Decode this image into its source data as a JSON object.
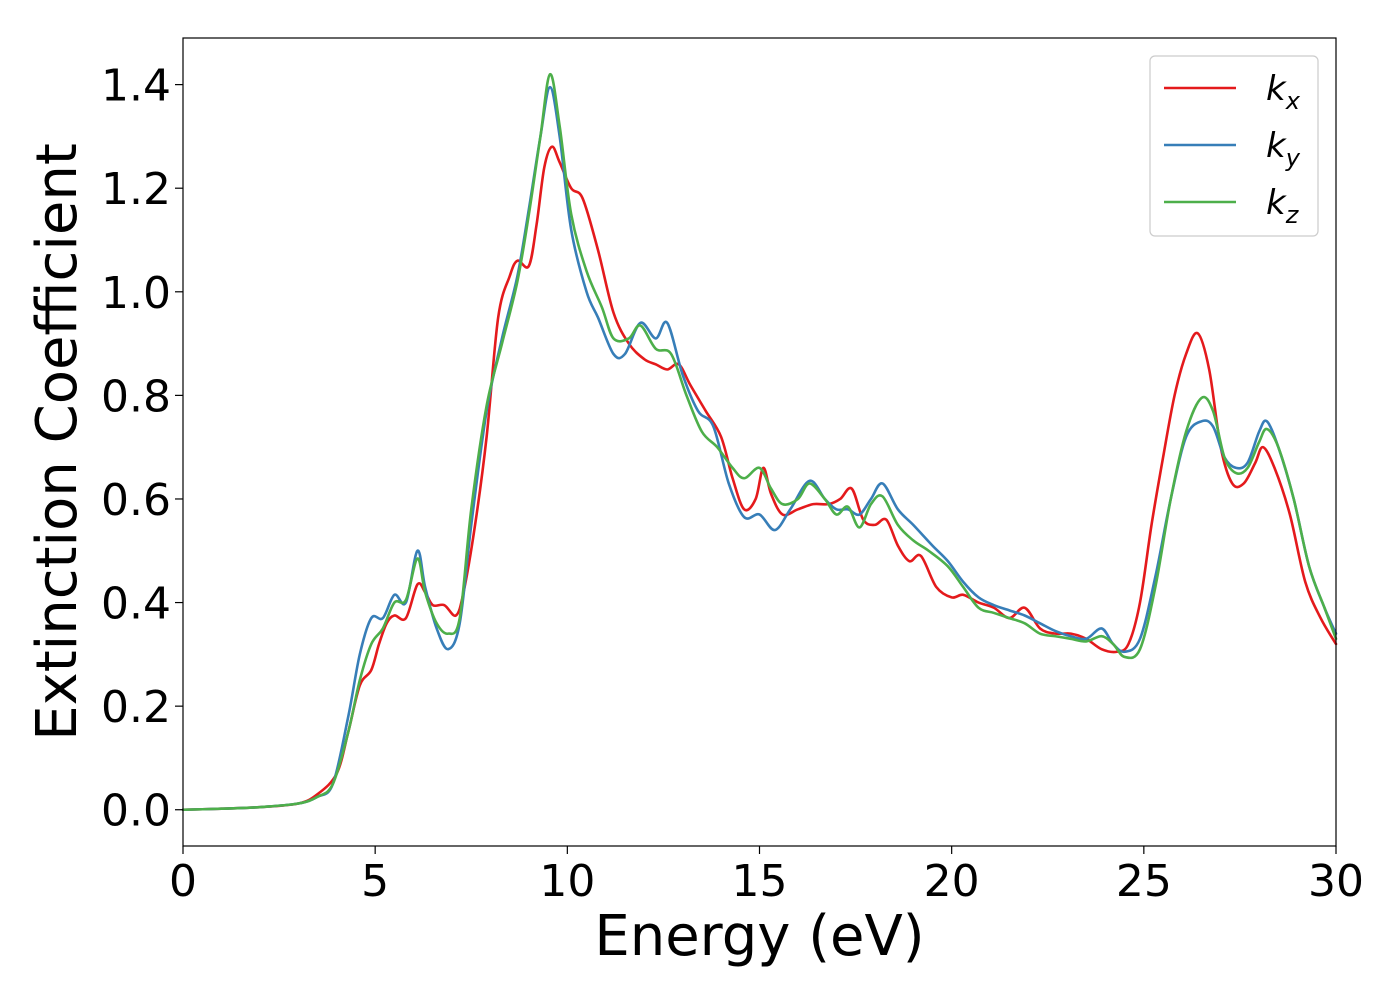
{
  "chart_data": {
    "type": "line",
    "title": "",
    "xlabel": "Energy (eV)",
    "ylabel": "Extinction Coefficient",
    "xlim": [
      0,
      30
    ],
    "ylim": [
      -0.07,
      1.49
    ],
    "xticks": [
      0,
      5,
      10,
      15,
      20,
      25,
      30
    ],
    "xtick_labels": [
      "0",
      "5",
      "10",
      "15",
      "20",
      "25",
      "30"
    ],
    "yticks": [
      0.0,
      0.2,
      0.4,
      0.6,
      0.8,
      1.0,
      1.2,
      1.4
    ],
    "ytick_labels": [
      "0.0",
      "0.2",
      "0.4",
      "0.6",
      "0.8",
      "1.0",
      "1.2",
      "1.4"
    ],
    "grid": false,
    "legend_position": "top-right",
    "series": [
      {
        "name": "k_x",
        "label_base": "k",
        "label_sub": "x",
        "color": "#e41a1c",
        "points": [
          [
            0,
            0.0
          ],
          [
            1,
            0.002
          ],
          [
            2,
            0.005
          ],
          [
            3,
            0.012
          ],
          [
            3.5,
            0.03
          ],
          [
            4,
            0.07
          ],
          [
            4.3,
            0.15
          ],
          [
            4.6,
            0.24
          ],
          [
            4.9,
            0.27
          ],
          [
            5.1,
            0.32
          ],
          [
            5.3,
            0.36
          ],
          [
            5.5,
            0.375
          ],
          [
            5.8,
            0.37
          ],
          [
            6.1,
            0.435
          ],
          [
            6.3,
            0.42
          ],
          [
            6.5,
            0.395
          ],
          [
            6.8,
            0.395
          ],
          [
            7.1,
            0.375
          ],
          [
            7.3,
            0.42
          ],
          [
            7.6,
            0.55
          ],
          [
            7.9,
            0.72
          ],
          [
            8.2,
            0.95
          ],
          [
            8.5,
            1.03
          ],
          [
            8.7,
            1.06
          ],
          [
            9.0,
            1.05
          ],
          [
            9.2,
            1.13
          ],
          [
            9.4,
            1.24
          ],
          [
            9.6,
            1.28
          ],
          [
            9.8,
            1.25
          ],
          [
            10.1,
            1.2
          ],
          [
            10.4,
            1.18
          ],
          [
            10.8,
            1.08
          ],
          [
            11.2,
            0.96
          ],
          [
            11.6,
            0.9
          ],
          [
            12.0,
            0.87
          ],
          [
            12.3,
            0.86
          ],
          [
            12.6,
            0.85
          ],
          [
            12.9,
            0.86
          ],
          [
            13.2,
            0.82
          ],
          [
            13.6,
            0.77
          ],
          [
            14.0,
            0.72
          ],
          [
            14.3,
            0.64
          ],
          [
            14.6,
            0.58
          ],
          [
            14.9,
            0.6
          ],
          [
            15.1,
            0.66
          ],
          [
            15.3,
            0.61
          ],
          [
            15.6,
            0.57
          ],
          [
            16.0,
            0.58
          ],
          [
            16.4,
            0.59
          ],
          [
            16.8,
            0.59
          ],
          [
            17.1,
            0.6
          ],
          [
            17.4,
            0.62
          ],
          [
            17.7,
            0.56
          ],
          [
            18.0,
            0.55
          ],
          [
            18.3,
            0.56
          ],
          [
            18.6,
            0.51
          ],
          [
            18.9,
            0.48
          ],
          [
            19.2,
            0.49
          ],
          [
            19.6,
            0.43
          ],
          [
            20.0,
            0.41
          ],
          [
            20.3,
            0.415
          ],
          [
            20.7,
            0.4
          ],
          [
            21.1,
            0.39
          ],
          [
            21.5,
            0.37
          ],
          [
            21.9,
            0.39
          ],
          [
            22.3,
            0.35
          ],
          [
            22.7,
            0.34
          ],
          [
            23.1,
            0.34
          ],
          [
            23.5,
            0.33
          ],
          [
            23.9,
            0.31
          ],
          [
            24.3,
            0.305
          ],
          [
            24.6,
            0.32
          ],
          [
            24.9,
            0.4
          ],
          [
            25.2,
            0.55
          ],
          [
            25.5,
            0.68
          ],
          [
            25.8,
            0.8
          ],
          [
            26.1,
            0.88
          ],
          [
            26.4,
            0.92
          ],
          [
            26.7,
            0.85
          ],
          [
            27.0,
            0.7
          ],
          [
            27.3,
            0.63
          ],
          [
            27.6,
            0.63
          ],
          [
            27.9,
            0.67
          ],
          [
            28.1,
            0.7
          ],
          [
            28.4,
            0.66
          ],
          [
            28.8,
            0.57
          ],
          [
            29.2,
            0.44
          ],
          [
            29.6,
            0.37
          ],
          [
            30,
            0.32
          ]
        ]
      },
      {
        "name": "k_y",
        "label_base": "k",
        "label_sub": "y",
        "color": "#377eb8",
        "points": [
          [
            0,
            0.0
          ],
          [
            1,
            0.002
          ],
          [
            2,
            0.005
          ],
          [
            3,
            0.012
          ],
          [
            3.5,
            0.025
          ],
          [
            3.9,
            0.05
          ],
          [
            4.3,
            0.18
          ],
          [
            4.6,
            0.3
          ],
          [
            4.9,
            0.37
          ],
          [
            5.2,
            0.37
          ],
          [
            5.5,
            0.415
          ],
          [
            5.8,
            0.4
          ],
          [
            6.1,
            0.5
          ],
          [
            6.3,
            0.43
          ],
          [
            6.6,
            0.35
          ],
          [
            6.9,
            0.31
          ],
          [
            7.2,
            0.36
          ],
          [
            7.5,
            0.55
          ],
          [
            7.9,
            0.77
          ],
          [
            8.3,
            0.91
          ],
          [
            8.7,
            1.03
          ],
          [
            9.0,
            1.16
          ],
          [
            9.3,
            1.3
          ],
          [
            9.55,
            1.395
          ],
          [
            9.8,
            1.3
          ],
          [
            10.1,
            1.12
          ],
          [
            10.5,
            1.0
          ],
          [
            10.8,
            0.95
          ],
          [
            11.2,
            0.88
          ],
          [
            11.5,
            0.88
          ],
          [
            11.9,
            0.94
          ],
          [
            12.3,
            0.91
          ],
          [
            12.6,
            0.94
          ],
          [
            13.0,
            0.84
          ],
          [
            13.4,
            0.77
          ],
          [
            13.8,
            0.74
          ],
          [
            14.2,
            0.63
          ],
          [
            14.6,
            0.565
          ],
          [
            15.0,
            0.57
          ],
          [
            15.4,
            0.54
          ],
          [
            15.8,
            0.58
          ],
          [
            16.3,
            0.635
          ],
          [
            16.7,
            0.6
          ],
          [
            17.0,
            0.58
          ],
          [
            17.3,
            0.58
          ],
          [
            17.6,
            0.57
          ],
          [
            17.9,
            0.6
          ],
          [
            18.2,
            0.63
          ],
          [
            18.6,
            0.58
          ],
          [
            19.0,
            0.55
          ],
          [
            19.5,
            0.51
          ],
          [
            19.9,
            0.48
          ],
          [
            20.3,
            0.44
          ],
          [
            20.7,
            0.41
          ],
          [
            21.1,
            0.395
          ],
          [
            21.5,
            0.385
          ],
          [
            21.9,
            0.375
          ],
          [
            22.3,
            0.36
          ],
          [
            22.7,
            0.345
          ],
          [
            23.1,
            0.335
          ],
          [
            23.5,
            0.33
          ],
          [
            23.9,
            0.35
          ],
          [
            24.2,
            0.32
          ],
          [
            24.5,
            0.305
          ],
          [
            24.9,
            0.33
          ],
          [
            25.3,
            0.45
          ],
          [
            25.7,
            0.6
          ],
          [
            26.1,
            0.72
          ],
          [
            26.5,
            0.75
          ],
          [
            26.8,
            0.74
          ],
          [
            27.1,
            0.68
          ],
          [
            27.4,
            0.66
          ],
          [
            27.7,
            0.67
          ],
          [
            28.0,
            0.73
          ],
          [
            28.2,
            0.75
          ],
          [
            28.5,
            0.7
          ],
          [
            28.9,
            0.6
          ],
          [
            29.3,
            0.47
          ],
          [
            29.7,
            0.39
          ],
          [
            30,
            0.34
          ]
        ]
      },
      {
        "name": "k_z",
        "label_base": "k",
        "label_sub": "z",
        "color": "#4daf4a",
        "points": [
          [
            0,
            0.0
          ],
          [
            1,
            0.002
          ],
          [
            2,
            0.005
          ],
          [
            3,
            0.012
          ],
          [
            3.5,
            0.025
          ],
          [
            3.9,
            0.05
          ],
          [
            4.3,
            0.15
          ],
          [
            4.6,
            0.25
          ],
          [
            4.9,
            0.32
          ],
          [
            5.2,
            0.35
          ],
          [
            5.5,
            0.4
          ],
          [
            5.8,
            0.405
          ],
          [
            6.1,
            0.485
          ],
          [
            6.3,
            0.42
          ],
          [
            6.6,
            0.36
          ],
          [
            6.9,
            0.34
          ],
          [
            7.2,
            0.37
          ],
          [
            7.5,
            0.58
          ],
          [
            7.9,
            0.78
          ],
          [
            8.3,
            0.9
          ],
          [
            8.7,
            1.02
          ],
          [
            9.0,
            1.15
          ],
          [
            9.3,
            1.3
          ],
          [
            9.55,
            1.42
          ],
          [
            9.8,
            1.32
          ],
          [
            10.1,
            1.15
          ],
          [
            10.5,
            1.04
          ],
          [
            10.9,
            0.97
          ],
          [
            11.2,
            0.91
          ],
          [
            11.6,
            0.91
          ],
          [
            11.9,
            0.935
          ],
          [
            12.3,
            0.89
          ],
          [
            12.7,
            0.88
          ],
          [
            13.1,
            0.8
          ],
          [
            13.5,
            0.73
          ],
          [
            13.9,
            0.7
          ],
          [
            14.3,
            0.66
          ],
          [
            14.6,
            0.64
          ],
          [
            15.0,
            0.66
          ],
          [
            15.3,
            0.62
          ],
          [
            15.6,
            0.59
          ],
          [
            16.0,
            0.6
          ],
          [
            16.3,
            0.63
          ],
          [
            16.7,
            0.6
          ],
          [
            17.0,
            0.57
          ],
          [
            17.3,
            0.585
          ],
          [
            17.6,
            0.545
          ],
          [
            17.9,
            0.59
          ],
          [
            18.2,
            0.605
          ],
          [
            18.6,
            0.55
          ],
          [
            19.0,
            0.52
          ],
          [
            19.4,
            0.5
          ],
          [
            19.9,
            0.47
          ],
          [
            20.3,
            0.43
          ],
          [
            20.7,
            0.39
          ],
          [
            21.1,
            0.38
          ],
          [
            21.5,
            0.37
          ],
          [
            21.9,
            0.36
          ],
          [
            22.3,
            0.34
          ],
          [
            22.7,
            0.335
          ],
          [
            23.1,
            0.33
          ],
          [
            23.5,
            0.325
          ],
          [
            23.9,
            0.335
          ],
          [
            24.2,
            0.32
          ],
          [
            24.5,
            0.295
          ],
          [
            24.9,
            0.31
          ],
          [
            25.3,
            0.43
          ],
          [
            25.7,
            0.6
          ],
          [
            26.1,
            0.73
          ],
          [
            26.5,
            0.795
          ],
          [
            26.8,
            0.77
          ],
          [
            27.1,
            0.68
          ],
          [
            27.4,
            0.65
          ],
          [
            27.7,
            0.66
          ],
          [
            28.0,
            0.71
          ],
          [
            28.2,
            0.735
          ],
          [
            28.5,
            0.7
          ],
          [
            28.9,
            0.6
          ],
          [
            29.3,
            0.47
          ],
          [
            29.7,
            0.39
          ],
          [
            30,
            0.33
          ]
        ]
      }
    ]
  }
}
